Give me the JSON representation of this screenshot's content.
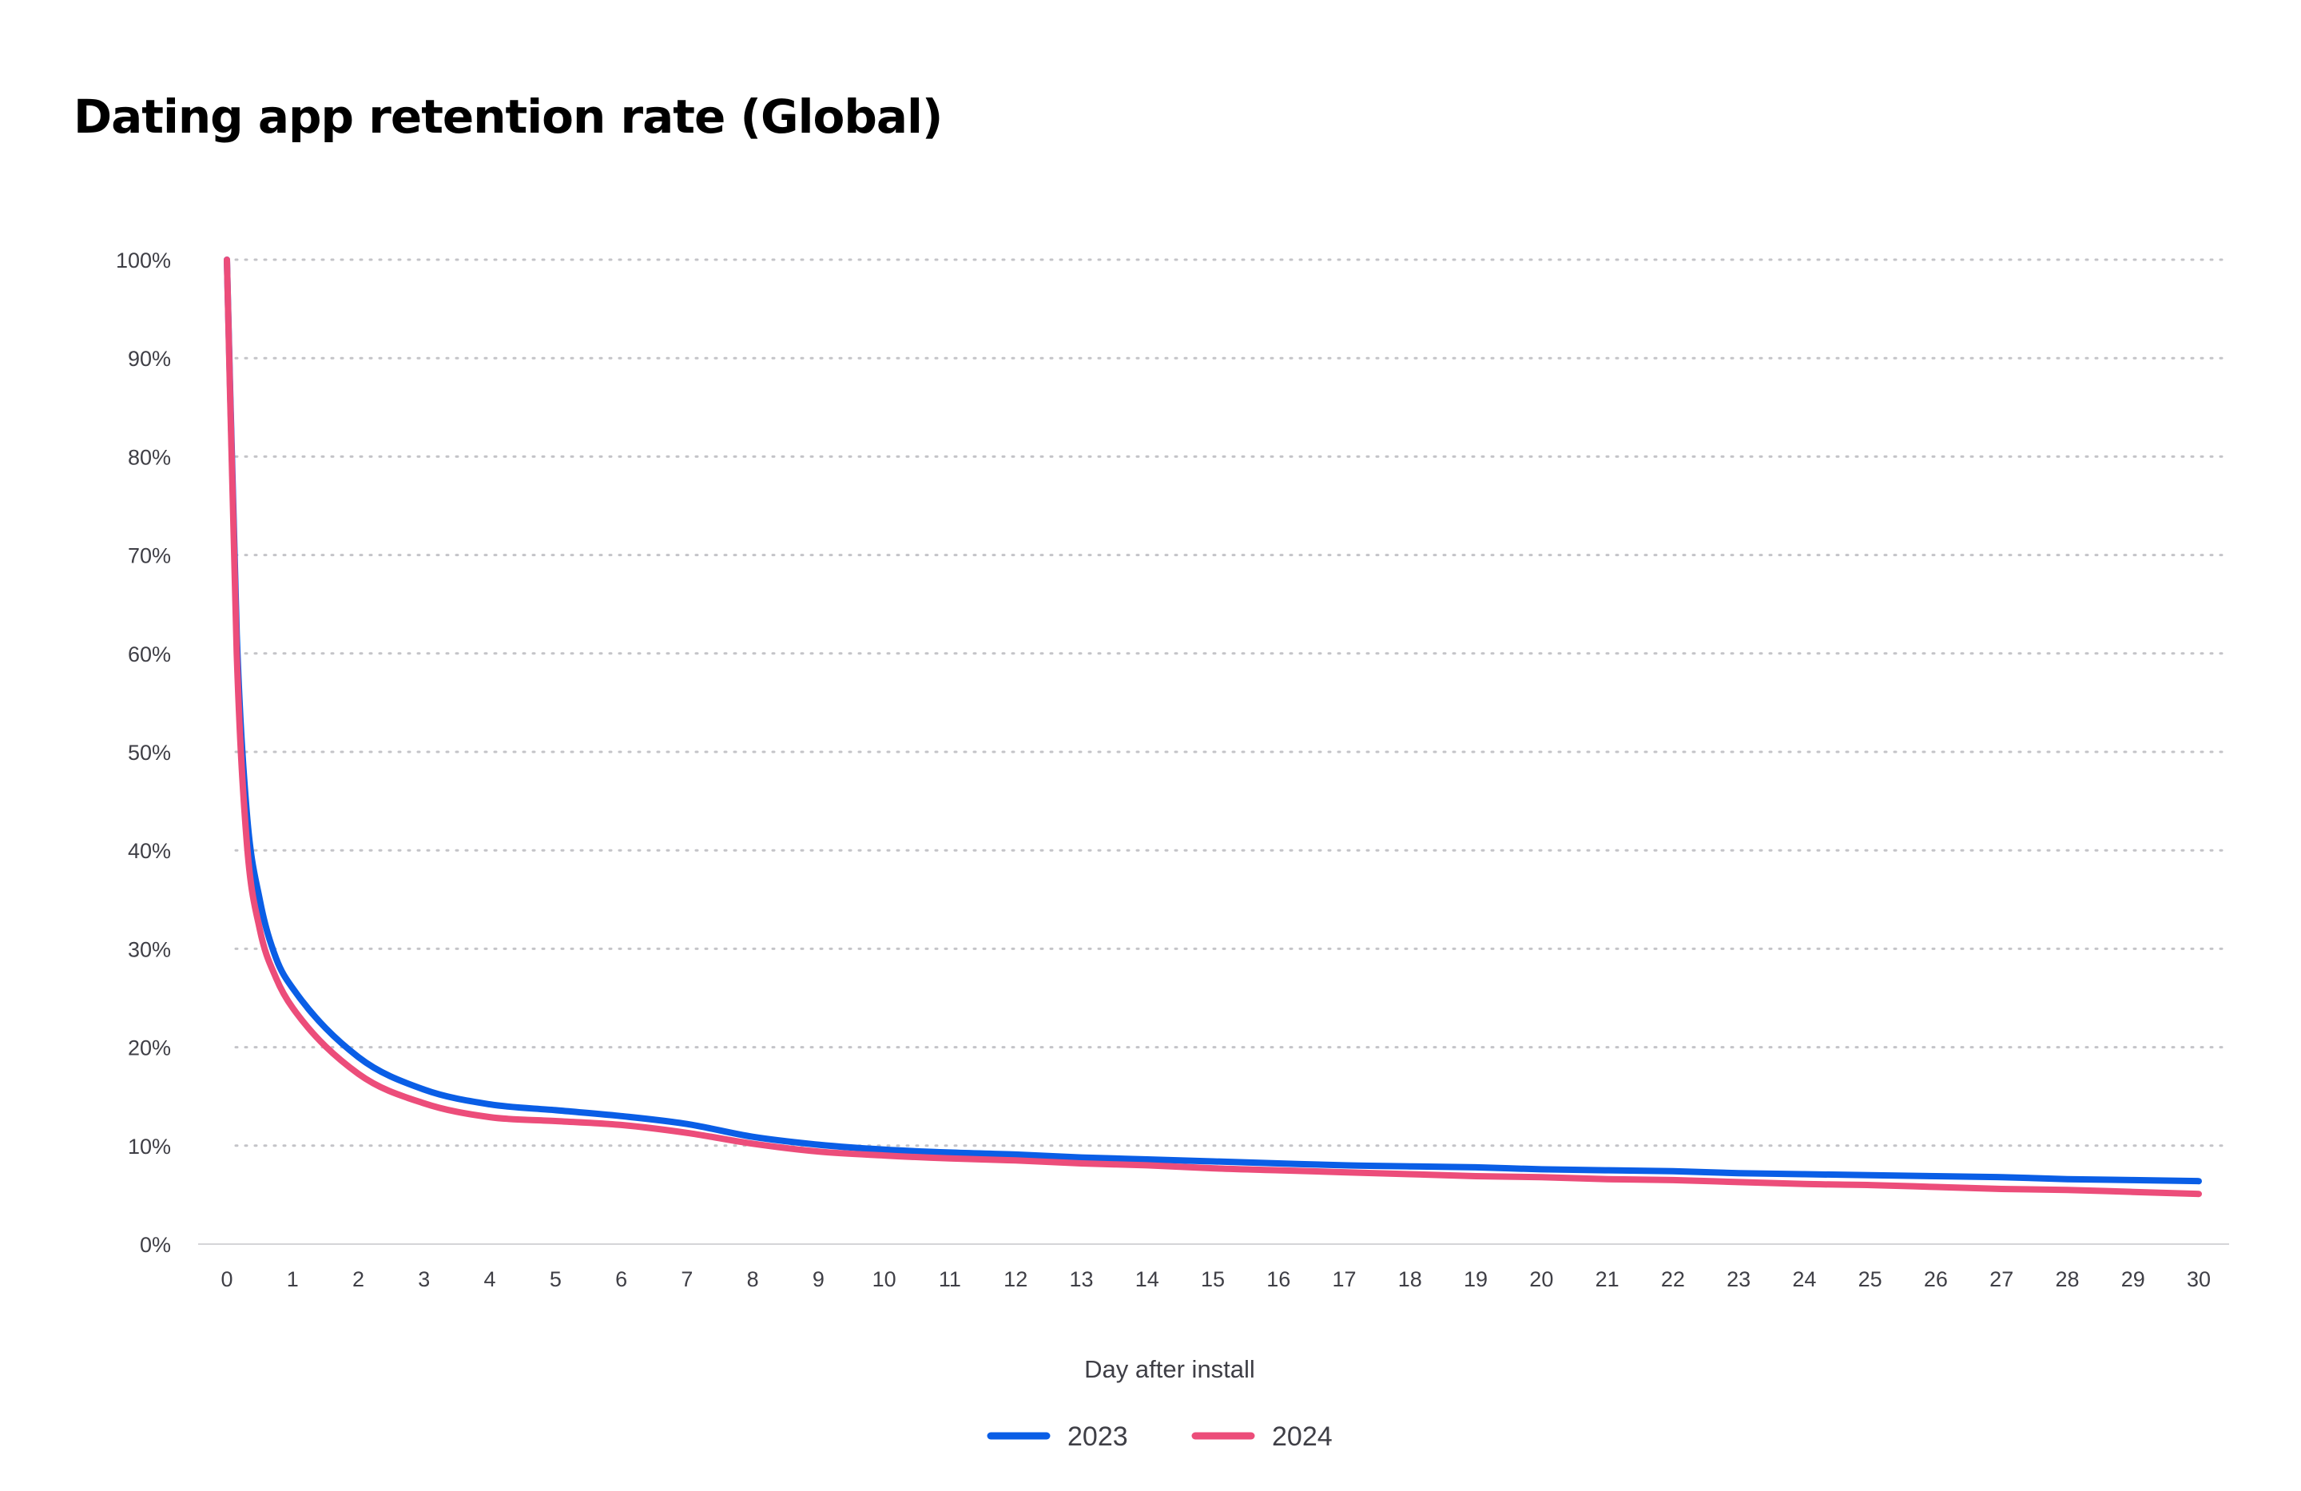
{
  "chart_data": {
    "type": "line",
    "title": "Dating app retention rate (Global)",
    "xlabel": "Day after install",
    "ylabel": "",
    "x": [
      0,
      0.15,
      0.3,
      0.5,
      0.75,
      1,
      2,
      3,
      4,
      5,
      6,
      7,
      8,
      9,
      10,
      11,
      12,
      13,
      14,
      15,
      16,
      17,
      18,
      19,
      20,
      21,
      22,
      23,
      24,
      25,
      26,
      27,
      28,
      29,
      30
    ],
    "x_ticks": [
      "0",
      "1",
      "2",
      "3",
      "4",
      "5",
      "6",
      "7",
      "8",
      "9",
      "10",
      "11",
      "12",
      "13",
      "14",
      "15",
      "16",
      "17",
      "18",
      "19",
      "20",
      "21",
      "22",
      "23",
      "24",
      "25",
      "26",
      "27",
      "28",
      "29",
      "30"
    ],
    "y_ticks": [
      "0%",
      "10%",
      "20%",
      "30%",
      "40%",
      "50%",
      "60%",
      "70%",
      "80%",
      "90%",
      "100%"
    ],
    "xlim": [
      0,
      30
    ],
    "ylim": [
      0,
      100
    ],
    "grid": "horizontal-dotted",
    "legend_position": "bottom-center",
    "series": [
      {
        "name": "2023",
        "color": "#0a5ee6",
        "values": [
          100,
          62,
          44,
          35,
          29,
          26,
          19,
          15.7,
          14.2,
          13.6,
          13,
          12.2,
          10.9,
          10.1,
          9.6,
          9.3,
          9.1,
          8.8,
          8.6,
          8.4,
          8.2,
          8.0,
          7.9,
          7.8,
          7.6,
          7.5,
          7.4,
          7.2,
          7.1,
          7.0,
          6.9,
          6.8,
          6.6,
          6.5,
          6.4
        ]
      },
      {
        "name": "2024",
        "color": "#ec4d7a",
        "values": [
          100,
          60,
          41,
          32,
          27,
          24,
          17.3,
          14.3,
          12.9,
          12.5,
          12.1,
          11.3,
          10.2,
          9.4,
          9.0,
          8.7,
          8.5,
          8.2,
          8.0,
          7.7,
          7.5,
          7.3,
          7.1,
          6.9,
          6.8,
          6.6,
          6.5,
          6.3,
          6.1,
          6.0,
          5.8,
          5.6,
          5.5,
          5.3,
          5.1
        ]
      }
    ]
  }
}
